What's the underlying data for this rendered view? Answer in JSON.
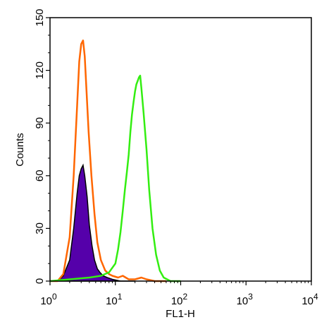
{
  "chart_data": {
    "type": "area",
    "title": "",
    "xlabel": "FL1-H",
    "ylabel": "Counts",
    "x_scale": "log",
    "xlim": [
      1,
      10000
    ],
    "ylim": [
      0,
      150
    ],
    "x_ticks": [
      {
        "value": 1,
        "base": "10",
        "exp": "0"
      },
      {
        "value": 10,
        "base": "10",
        "exp": "1"
      },
      {
        "value": 100,
        "base": "10",
        "exp": "2"
      },
      {
        "value": 1000,
        "base": "10",
        "exp": "3"
      },
      {
        "value": 10000,
        "base": "10",
        "exp": "4"
      }
    ],
    "y_ticks": [
      "0",
      "30",
      "60",
      "90",
      "120",
      "150"
    ],
    "grid": false,
    "legend": "none",
    "series": [
      {
        "color": "#5500aa",
        "stroke": "#000000",
        "fill": true,
        "x": [
          1.0,
          1.3,
          1.6,
          2.0,
          2.3,
          2.6,
          2.8,
          3.0,
          3.2,
          3.4,
          3.7,
          4.0,
          4.4,
          4.8,
          5.3,
          5.8,
          6.5,
          7.5,
          9.0,
          12.0,
          20.0
        ],
        "y": [
          0,
          0,
          3,
          12,
          30,
          50,
          60,
          64,
          66,
          60,
          48,
          32,
          20,
          12,
          7,
          5,
          3,
          2,
          1,
          0,
          0
        ]
      },
      {
        "color": "#ff6600",
        "fill": false,
        "x": [
          1.0,
          1.3,
          1.6,
          2.0,
          2.3,
          2.6,
          2.8,
          3.0,
          3.2,
          3.4,
          3.6,
          3.9,
          4.3,
          4.8,
          5.3,
          6.0,
          7.0,
          8.0,
          9.0,
          11.0,
          13.0,
          16.0,
          20.0,
          25.0,
          30.0,
          40.0,
          60.0
        ],
        "y": [
          0,
          0,
          4,
          25,
          60,
          100,
          125,
          135,
          137,
          128,
          110,
          85,
          60,
          38,
          22,
          12,
          6,
          4,
          3,
          2,
          3,
          1,
          1,
          2,
          1,
          0,
          0
        ]
      },
      {
        "color": "#33ee11",
        "fill": false,
        "x": [
          1.0,
          2.0,
          4.0,
          6.0,
          8.0,
          10.0,
          11.0,
          12.0,
          13.0,
          14.0,
          15.0,
          16.0,
          17.0,
          18.0,
          19.0,
          20.0,
          21.0,
          22.0,
          23.0,
          24.0,
          25.0,
          27.0,
          30.0,
          33.0,
          37.0,
          42.0,
          48.0,
          55.0,
          62.0,
          70.0,
          100.0
        ],
        "y": [
          0,
          1,
          2,
          3,
          5,
          10,
          18,
          28,
          40,
          52,
          62,
          72,
          85,
          95,
          102,
          108,
          112,
          114,
          116,
          117,
          110,
          96,
          75,
          52,
          30,
          15,
          6,
          2,
          1,
          0,
          0
        ]
      }
    ]
  }
}
